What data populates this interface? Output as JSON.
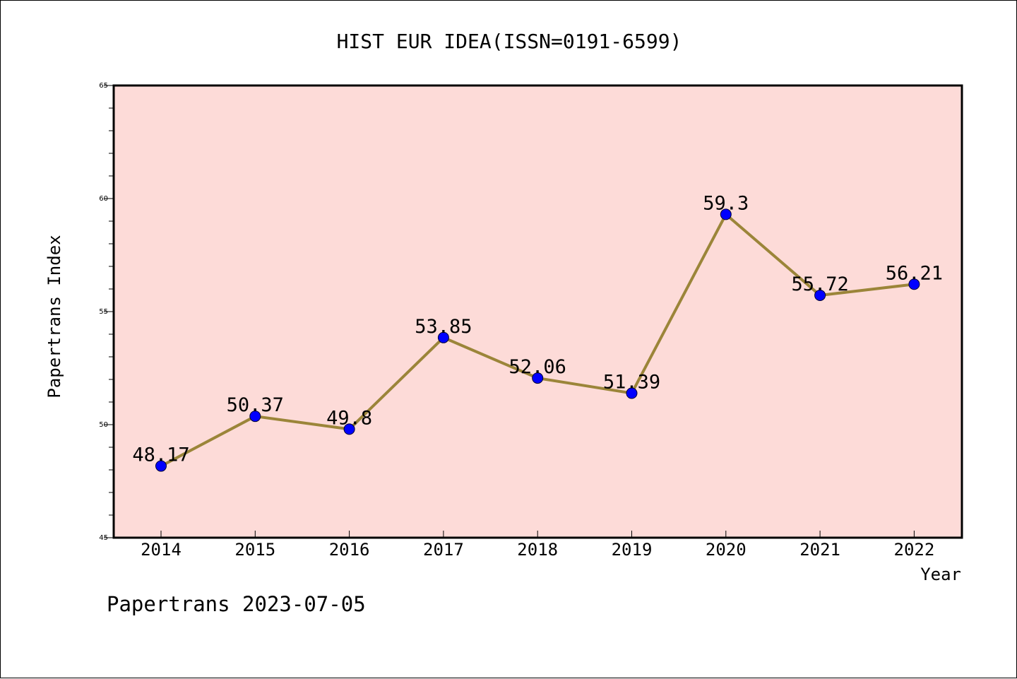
{
  "chart_data": {
    "type": "line",
    "title": "HIST EUR IDEA(ISSN=0191-6599)",
    "xlabel": "Year",
    "ylabel": "Papertrans Index",
    "footer": "Papertrans 2023-07-05",
    "categories": [
      "2014",
      "2015",
      "2016",
      "2017",
      "2018",
      "2019",
      "2020",
      "2021",
      "2022"
    ],
    "series": [
      {
        "values": [
          48.17,
          50.37,
          49.8,
          53.85,
          52.06,
          51.39,
          59.3,
          55.72,
          56.21
        ],
        "labels": [
          "48.17",
          "50.37",
          "49.8",
          "53.85",
          "52.06",
          "51.39",
          "59.3",
          "55.72",
          "56.21"
        ]
      }
    ],
    "ylim": [
      45,
      65
    ],
    "yticks": [
      "45",
      "50",
      "55",
      "60",
      "65"
    ],
    "grid": false,
    "colors": {
      "plot_background": "#fddbd8",
      "line": "#9b8539",
      "marker": "#0000ff"
    }
  }
}
